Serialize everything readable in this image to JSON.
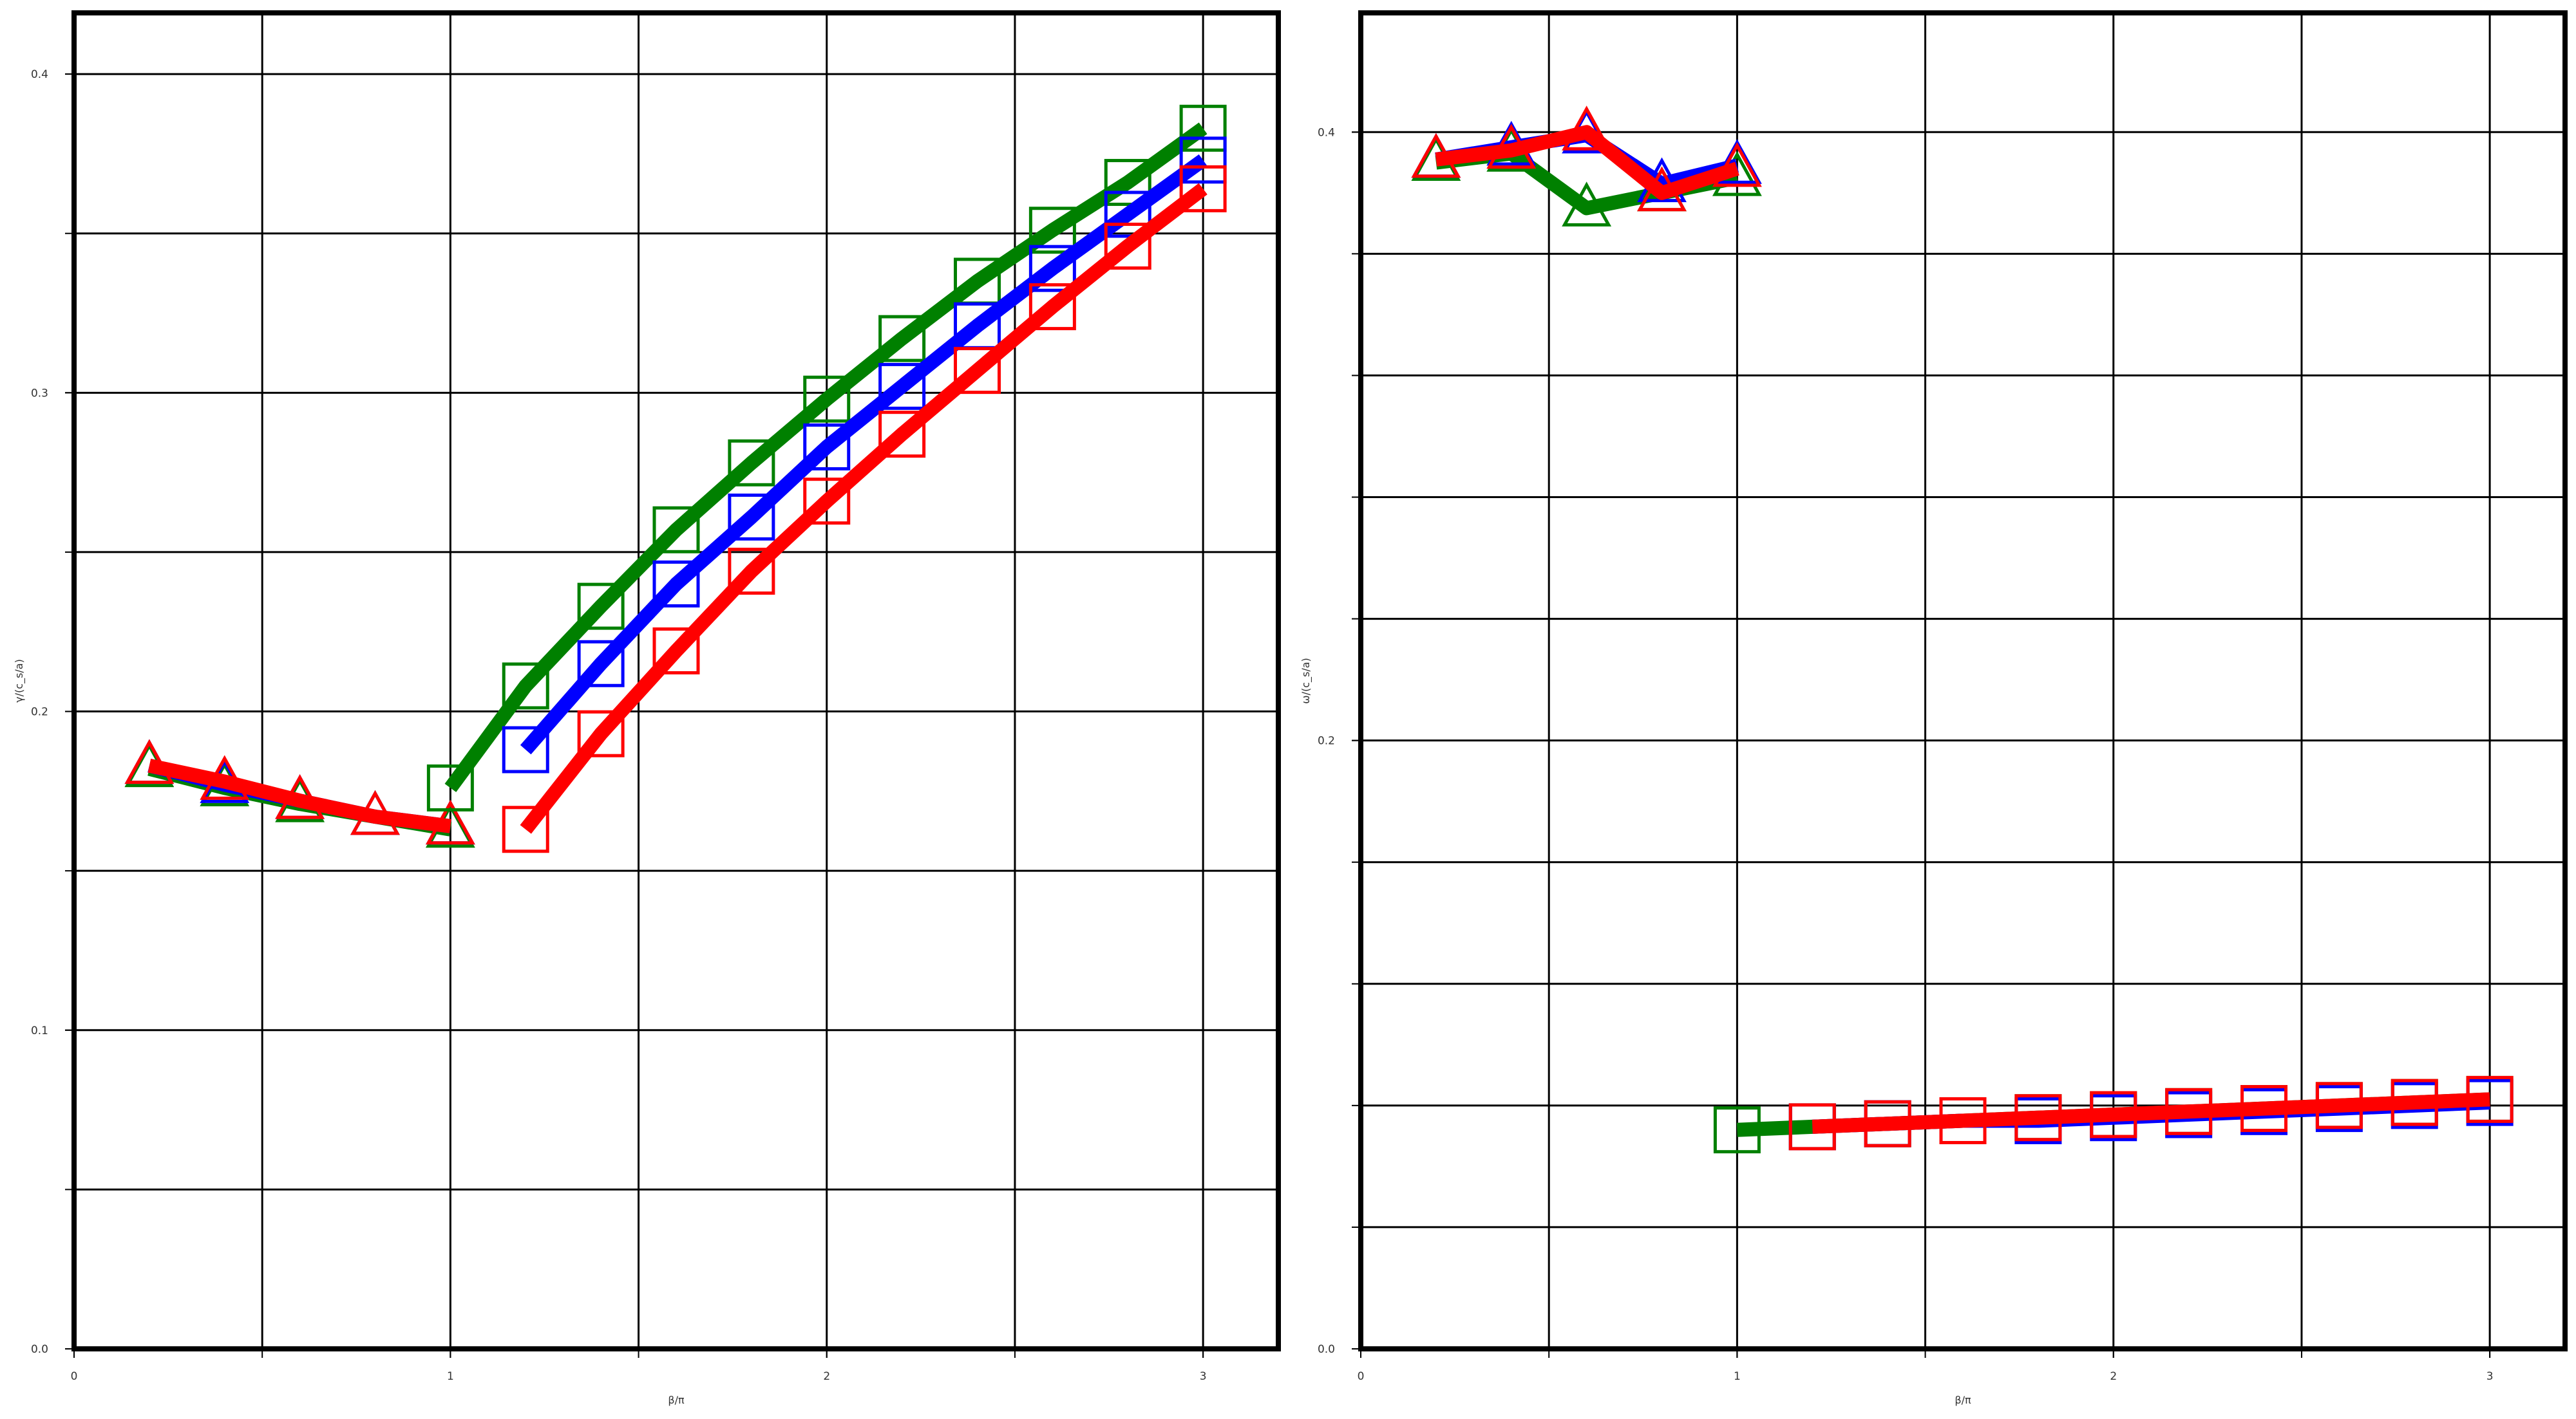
{
  "colors": {
    "green": "#008000",
    "blue": "#0000ff",
    "red": "#ff0000",
    "frame": "#000000",
    "grid": "#000000",
    "text": "#333333"
  },
  "chart_data": [
    {
      "type": "line",
      "title": "",
      "xlabel": "β/π",
      "ylabel": "γ/(c_s/a)",
      "xlim": [
        0,
        3.2
      ],
      "ylim": [
        0,
        0.4192
      ],
      "xticks": [
        0,
        1,
        2,
        3
      ],
      "xtick_labels": [
        "0",
        "1",
        "2",
        "3"
      ],
      "yticks": [
        0.0,
        0.1,
        0.2,
        0.3,
        0.4
      ],
      "ytick_labels": [
        "0.0",
        "0.1",
        "0.2",
        "0.3",
        "0.4"
      ],
      "grid": true,
      "legend": "none",
      "series": [
        {
          "color": "green",
          "marker": "triangle",
          "x": [
            0.2,
            0.4,
            0.6,
            0.8,
            1.0
          ],
          "y": [
            0.182,
            0.176,
            0.171,
            0.167,
            0.163
          ]
        },
        {
          "color": "blue",
          "marker": "triangle",
          "x": [
            0.2,
            0.4,
            0.6,
            0.8,
            1.0
          ],
          "y": [
            0.183,
            0.177,
            0.172,
            0.167,
            0.164
          ]
        },
        {
          "color": "red",
          "marker": "triangle",
          "x": [
            0.2,
            0.4,
            0.6,
            0.8,
            1.0
          ],
          "y": [
            0.183,
            0.178,
            0.172,
            0.167,
            0.164
          ]
        },
        {
          "color": "green",
          "marker": "square",
          "x": [
            1.0,
            1.2,
            1.4,
            1.6,
            1.8,
            2.0,
            2.2,
            2.4,
            2.6,
            2.8,
            3.0
          ],
          "y": [
            0.176,
            0.208,
            0.233,
            0.257,
            0.278,
            0.298,
            0.317,
            0.335,
            0.351,
            0.366,
            0.383
          ]
        },
        {
          "color": "blue",
          "marker": "square",
          "x": [
            1.2,
            1.4,
            1.6,
            1.8,
            2.0,
            2.2,
            2.4,
            2.6,
            2.8,
            3.0
          ],
          "y": [
            0.188,
            0.215,
            0.24,
            0.261,
            0.283,
            0.302,
            0.321,
            0.339,
            0.356,
            0.373
          ]
        },
        {
          "color": "red",
          "marker": "square",
          "x": [
            1.2,
            1.4,
            1.6,
            1.8,
            2.0,
            2.2,
            2.4,
            2.6,
            2.8,
            3.0
          ],
          "y": [
            0.163,
            0.193,
            0.219,
            0.244,
            0.266,
            0.287,
            0.307,
            0.327,
            0.346,
            0.364
          ]
        }
      ]
    },
    {
      "type": "line",
      "title": "",
      "xlabel": "β/π",
      "ylabel": "ω/(c_s/a)",
      "xlim": [
        0,
        3.2
      ],
      "ylim": [
        0,
        0.4392
      ],
      "xticks": [
        0,
        1,
        2,
        3
      ],
      "xtick_labels": [
        "0",
        "1",
        "2",
        "3"
      ],
      "yticks": [
        0.0,
        0.2,
        0.4
      ],
      "ytick_labels": [
        "0.0",
        "0.2",
        "0.4"
      ],
      "yminor": [
        0.04,
        0.08,
        0.12,
        0.16,
        0.24,
        0.28,
        0.32,
        0.36,
        0.44
      ],
      "grid": true,
      "legend": "none",
      "series": [
        {
          "color": "green",
          "marker": "triangle",
          "x": [
            0.2,
            0.4,
            0.6,
            0.8,
            1.0
          ],
          "y": [
            0.39,
            0.393,
            0.375,
            0.38,
            0.385
          ]
        },
        {
          "color": "blue",
          "marker": "triangle",
          "x": [
            0.2,
            0.4,
            0.6,
            0.8,
            1.0
          ],
          "y": [
            0.391,
            0.395,
            0.399,
            0.383,
            0.389
          ]
        },
        {
          "color": "red",
          "marker": "triangle",
          "x": [
            0.2,
            0.4,
            0.6,
            0.8,
            1.0
          ],
          "y": [
            0.391,
            0.394,
            0.4,
            0.38,
            0.388
          ]
        },
        {
          "color": "green",
          "marker": "square",
          "x": [
            1.0,
            1.2,
            1.4,
            1.6,
            1.8,
            2.0,
            2.2,
            2.4,
            2.6,
            2.8,
            3.0
          ],
          "y": [
            0.072,
            0.073,
            0.074,
            0.075,
            0.076,
            0.077,
            0.078,
            0.079,
            0.08,
            0.081,
            0.082
          ]
        },
        {
          "color": "blue",
          "marker": "square",
          "x": [
            1.2,
            1.4,
            1.6,
            1.8,
            2.0,
            2.2,
            2.4,
            2.6,
            2.8,
            3.0
          ],
          "y": [
            0.073,
            0.074,
            0.075,
            0.075,
            0.076,
            0.077,
            0.078,
            0.079,
            0.08,
            0.081
          ]
        },
        {
          "color": "red",
          "marker": "square",
          "x": [
            1.2,
            1.4,
            1.6,
            1.8,
            2.0,
            2.2,
            2.4,
            2.6,
            2.8,
            3.0
          ],
          "y": [
            0.073,
            0.074,
            0.075,
            0.076,
            0.077,
            0.078,
            0.079,
            0.08,
            0.081,
            0.082
          ]
        }
      ]
    }
  ]
}
